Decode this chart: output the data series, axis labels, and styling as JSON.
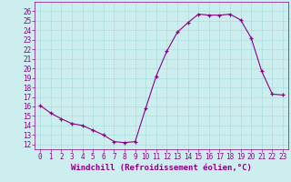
{
  "hours": [
    0,
    1,
    2,
    3,
    4,
    5,
    6,
    7,
    8,
    9,
    10,
    11,
    12,
    13,
    14,
    15,
    16,
    17,
    18,
    19,
    20,
    21,
    22,
    23
  ],
  "values": [
    16.1,
    15.3,
    14.7,
    14.2,
    14.0,
    13.5,
    13.0,
    12.3,
    12.2,
    12.3,
    15.8,
    19.2,
    21.8,
    23.8,
    24.8,
    25.7,
    25.6,
    25.6,
    25.7,
    25.1,
    23.2,
    19.7,
    17.3,
    17.2
  ],
  "line_color": "#880088",
  "marker": "+",
  "background_color": "#cceeee",
  "grid_color": "#aadddd",
  "xlabel": "Windchill (Refroidissement éolien,°C)",
  "ylim": [
    11.5,
    27
  ],
  "xlim": [
    -0.5,
    23.5
  ],
  "yticks": [
    12,
    13,
    14,
    15,
    16,
    17,
    18,
    19,
    20,
    21,
    22,
    23,
    24,
    25,
    26
  ],
  "xticks": [
    0,
    1,
    2,
    3,
    4,
    5,
    6,
    7,
    8,
    9,
    10,
    11,
    12,
    13,
    14,
    15,
    16,
    17,
    18,
    19,
    20,
    21,
    22,
    23
  ],
  "label_color": "#880088",
  "tick_color": "#880088",
  "label_fontsize": 6.5,
  "tick_fontsize": 5.5
}
